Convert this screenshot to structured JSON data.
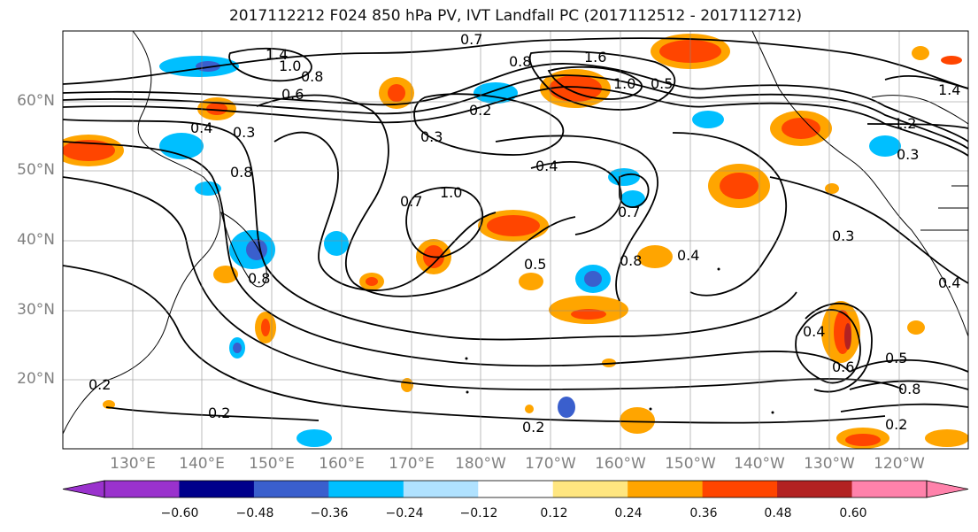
{
  "title": "2017112212 F024 850 hPa PV, IVT Landfall PC (2017112512 - 2017112712)",
  "lat_labels": [
    "60°N",
    "50°N",
    "40°N",
    "30°N",
    "20°N"
  ],
  "lon_labels": [
    "130°E",
    "140°E",
    "150°E",
    "160°E",
    "170°E",
    "180°W",
    "170°W",
    "160°W",
    "150°W",
    "140°W",
    "130°W",
    "120°W"
  ],
  "colorbar": {
    "ticks": [
      "−0.60",
      "−0.48",
      "−0.36",
      "−0.24",
      "−0.12",
      "0.12",
      "0.24",
      "0.36",
      "0.48",
      "0.60"
    ],
    "colors": [
      "#9a32cd",
      "#00008b",
      "#3a5fcd",
      "#00bfff",
      "#b0e2ff",
      "#ffffff",
      "#ffe680",
      "#ffa500",
      "#ff4500",
      "#b22222",
      "#ff82ab"
    ]
  },
  "contour_labels": {
    "l1": "1.4",
    "l2": "1.0",
    "l3": "0.8",
    "l4": "0.6",
    "l5": "0.4",
    "l6": "0.3",
    "l7": "0.2",
    "l8": "0.3",
    "l9": "0.4",
    "l10": "1.0",
    "l11": "0.7",
    "l12": "0.8",
    "l13": "0.5",
    "l14": "0.7",
    "l15": "0.4",
    "l16": "0.3",
    "l17": "0.3",
    "l18": "0.5",
    "l19": "0.8",
    "l20": "0.2",
    "l21": "0.2",
    "l22": "0.2",
    "l23": "0.7",
    "l24": "1.6",
    "l25": "1.0",
    "l26": "0.8",
    "l27": "1.4",
    "l28": "0.4",
    "l29": "0.8",
    "l30": "0.6",
    "l31": "0.2",
    "l32": "1.2",
    "l33": "0.5",
    "l34": "0.8",
    "l35": "0.4"
  }
}
